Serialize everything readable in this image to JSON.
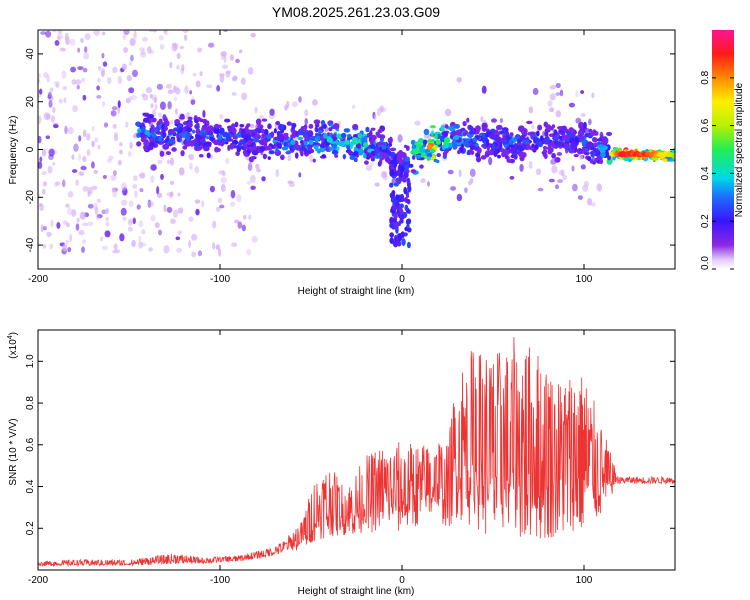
{
  "figure_title": "YM08.2025.261.23.03.G09",
  "colors": {
    "snr_line": "#ee3333",
    "scatter_light": "#d7b4f7",
    "scatter_dark": "#6a1fe8",
    "background": "#ffffff"
  },
  "chart_data": [
    {
      "type": "heatmap",
      "title": "",
      "xlabel": "Height of straight line (km)",
      "ylabel": "Frequency (Hz)",
      "xlim": [
        -200,
        150
      ],
      "ylim": [
        -50,
        50
      ],
      "xticks": [
        -200,
        -100,
        0,
        100
      ],
      "xtick_labels": [
        "-200",
        "-100",
        "0",
        "100"
      ],
      "yticks": [
        -40,
        -20,
        0,
        20,
        40
      ],
      "ytick_labels": [
        "-40",
        "-20",
        "0",
        "20",
        "40"
      ],
      "colorbar": {
        "label": "Normalized spectral amplitude",
        "range": [
          0,
          1
        ],
        "ticks": [
          0,
          0.2,
          0.4,
          0.6,
          0.8
        ],
        "tick_labels": [
          "0.0",
          "0.2",
          "0.4",
          "0.6",
          "0.8"
        ],
        "colormap": "rainbow (violet-blue-cyan-green-yellow-red-magenta)"
      },
      "ridge": {
        "x": [
          -140,
          -120,
          -100,
          -80,
          -60,
          -50,
          -40,
          -30,
          -20,
          -10,
          -5,
          0,
          3,
          8,
          15,
          20,
          30,
          40,
          60,
          80,
          100,
          110,
          120,
          135,
          150
        ],
        "frequency": [
          7,
          6,
          5,
          4,
          3,
          3,
          4,
          3,
          2,
          1,
          -2,
          -8,
          -4,
          -1,
          1,
          3,
          5,
          4,
          3,
          4,
          3,
          0,
          -2,
          -2,
          -3
        ],
        "amplitude": [
          0.35,
          0.3,
          0.3,
          0.28,
          0.35,
          0.35,
          0.4,
          0.4,
          0.45,
          0.3,
          0.25,
          0.2,
          0.3,
          0.5,
          0.8,
          0.5,
          0.35,
          0.3,
          0.3,
          0.25,
          0.3,
          0.35,
          0.95,
          0.9,
          0.6
        ]
      }
    },
    {
      "type": "line",
      "title": "",
      "xlabel": "Height of straight line (km)",
      "ylabel": "SNR (10 * V/V)",
      "scale_label": "(x10",
      "scale_exp": "4",
      "scale_close": ")",
      "xlim": [
        -200,
        150
      ],
      "ylim": [
        0,
        1.15
      ],
      "xticks": [
        -200,
        -100,
        0,
        100
      ],
      "xtick_labels": [
        "-200",
        "-100",
        "0",
        "100"
      ],
      "yticks": [
        0.2,
        0.4,
        0.6,
        0.8,
        1.0
      ],
      "ytick_labels": [
        "0.2",
        "0.4",
        "0.6",
        "0.8",
        "1.0"
      ],
      "series": [
        {
          "name": "SNR",
          "x": [
            -200,
            -180,
            -150,
            -125,
            -110,
            -90,
            -75,
            -65,
            -55,
            -48,
            -40,
            -30,
            -20,
            -10,
            0,
            10,
            18,
            25,
            30,
            40,
            50,
            60,
            70,
            80,
            90,
            100,
            108,
            115,
            118,
            130,
            150
          ],
          "base": [
            0.02,
            0.02,
            0.02,
            0.03,
            0.03,
            0.04,
            0.06,
            0.08,
            0.1,
            0.14,
            0.16,
            0.17,
            0.17,
            0.2,
            0.18,
            0.22,
            0.26,
            0.2,
            0.25,
            0.2,
            0.15,
            0.15,
            0.15,
            0.15,
            0.18,
            0.2,
            0.25,
            0.35,
            0.43,
            0.44,
            0.44
          ],
          "peak": [
            0.04,
            0.05,
            0.05,
            0.08,
            0.06,
            0.07,
            0.1,
            0.14,
            0.24,
            0.44,
            0.5,
            0.4,
            0.55,
            0.6,
            0.62,
            0.6,
            0.66,
            0.6,
            0.95,
            1.1,
            1.05,
            1.12,
            1.1,
            1.0,
            0.95,
            0.95,
            0.75,
            0.55,
            0.46,
            0.46,
            0.45
          ]
        }
      ]
    }
  ]
}
